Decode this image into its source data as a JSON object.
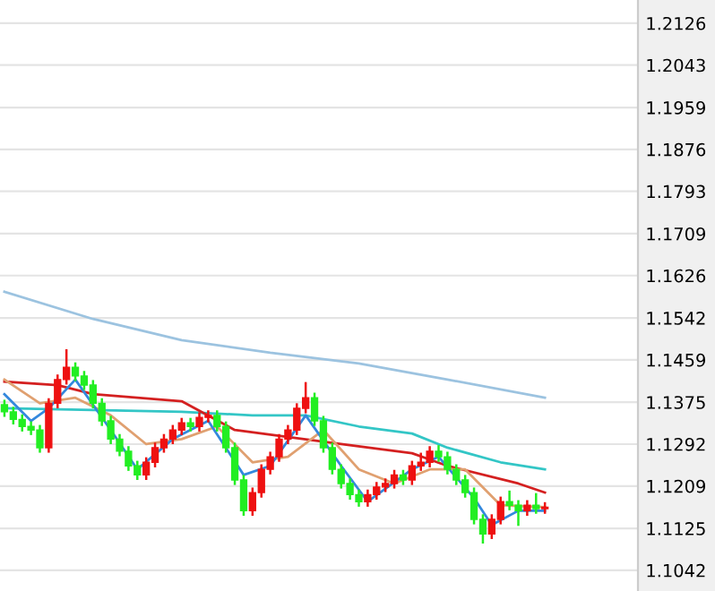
{
  "chart_data": {
    "type": "candlestick",
    "categories": [
      null,
      null,
      null,
      null,
      null,
      null,
      null,
      null,
      null,
      null,
      null,
      null,
      null,
      null,
      null,
      null,
      null,
      null,
      null,
      null,
      null,
      null,
      null,
      null,
      null,
      null,
      null,
      null,
      null,
      null,
      null,
      null,
      null,
      null,
      null,
      null,
      null,
      null,
      null,
      null,
      null,
      null,
      null,
      null,
      null,
      null,
      null,
      null,
      null,
      null,
      null,
      null,
      null,
      null,
      null,
      null,
      null,
      null,
      null,
      null,
      null,
      null,
      null,
      null,
      null,
      null,
      null,
      null,
      null,
      null,
      null,
      null
    ],
    "ohlc": [
      [
        1.137,
        1.138,
        1.1346,
        1.1356
      ],
      [
        1.1356,
        1.1366,
        1.1331,
        1.1341
      ],
      [
        1.1341,
        1.1351,
        1.1317,
        1.1327
      ],
      [
        1.1327,
        1.1337,
        1.131,
        1.132
      ],
      [
        1.132,
        1.133,
        1.1275,
        1.1285
      ],
      [
        1.1285,
        1.1383,
        1.1275,
        1.1373
      ],
      [
        1.1373,
        1.143,
        1.1363,
        1.142
      ],
      [
        1.142,
        1.148,
        1.141,
        1.1444
      ],
      [
        1.1444,
        1.1454,
        1.1417,
        1.1427
      ],
      [
        1.1427,
        1.1437,
        1.1399,
        1.1409
      ],
      [
        1.1409,
        1.1419,
        1.1363,
        1.1373
      ],
      [
        1.1373,
        1.1383,
        1.1328,
        1.1338
      ],
      [
        1.1338,
        1.1348,
        1.1292,
        1.1302
      ],
      [
        1.1302,
        1.1312,
        1.1268,
        1.1278
      ],
      [
        1.1278,
        1.1288,
        1.1239,
        1.1249
      ],
      [
        1.1249,
        1.1259,
        1.1221,
        1.1231
      ],
      [
        1.1231,
        1.1266,
        1.1221,
        1.1256
      ],
      [
        1.1256,
        1.1295,
        1.1246,
        1.1285
      ],
      [
        1.1285,
        1.1312,
        1.1275,
        1.1302
      ],
      [
        1.1302,
        1.133,
        1.1292,
        1.132
      ],
      [
        1.132,
        1.1344,
        1.131,
        1.1334
      ],
      [
        1.1334,
        1.1344,
        1.1317,
        1.1327
      ],
      [
        1.1327,
        1.1355,
        1.1317,
        1.1345
      ],
      [
        1.1345,
        1.1359,
        1.1335,
        1.1349
      ],
      [
        1.1349,
        1.1359,
        1.1317,
        1.1327
      ],
      [
        1.1327,
        1.1337,
        1.1275,
        1.1285
      ],
      [
        1.1285,
        1.1295,
        1.1211,
        1.1221
      ],
      [
        1.1221,
        1.1231,
        1.115,
        1.116
      ],
      [
        1.116,
        1.1206,
        1.115,
        1.1196
      ],
      [
        1.1196,
        1.1252,
        1.1186,
        1.1242
      ],
      [
        1.1242,
        1.1277,
        1.1232,
        1.1267
      ],
      [
        1.1267,
        1.1312,
        1.1257,
        1.1302
      ],
      [
        1.1302,
        1.133,
        1.1292,
        1.132
      ],
      [
        1.132,
        1.1373,
        1.131,
        1.1363
      ],
      [
        1.1363,
        1.1415,
        1.1353,
        1.1384
      ],
      [
        1.1384,
        1.1394,
        1.1328,
        1.1338
      ],
      [
        1.1338,
        1.1348,
        1.1275,
        1.1285
      ],
      [
        1.1285,
        1.1295,
        1.1232,
        1.1242
      ],
      [
        1.1242,
        1.1252,
        1.1204,
        1.1214
      ],
      [
        1.1214,
        1.1224,
        1.1182,
        1.1192
      ],
      [
        1.1192,
        1.1202,
        1.1168,
        1.1178
      ],
      [
        1.1178,
        1.1202,
        1.1168,
        1.1192
      ],
      [
        1.1192,
        1.1217,
        1.1182,
        1.1207
      ],
      [
        1.1207,
        1.1224,
        1.1197,
        1.1214
      ],
      [
        1.1214,
        1.1241,
        1.1204,
        1.1231
      ],
      [
        1.1231,
        1.1241,
        1.1211,
        1.1221
      ],
      [
        1.1221,
        1.1259,
        1.1211,
        1.1249
      ],
      [
        1.1249,
        1.1275,
        1.1239,
        1.1256
      ],
      [
        1.1256,
        1.1288,
        1.1246,
        1.1278
      ],
      [
        1.1278,
        1.129,
        1.1257,
        1.1267
      ],
      [
        1.1267,
        1.1277,
        1.1232,
        1.1242
      ],
      [
        1.1242,
        1.1252,
        1.1211,
        1.1221
      ],
      [
        1.1221,
        1.1231,
        1.1186,
        1.1196
      ],
      [
        1.1196,
        1.1206,
        1.1133,
        1.1143
      ],
      [
        1.1143,
        1.1153,
        1.1095,
        1.1114
      ],
      [
        1.1114,
        1.1153,
        1.1104,
        1.1143
      ],
      [
        1.1143,
        1.1188,
        1.1133,
        1.1178
      ],
      [
        1.1178,
        1.12,
        1.1161,
        1.1171
      ],
      [
        1.1171,
        1.1181,
        1.113,
        1.116
      ],
      [
        1.116,
        1.1181,
        1.115,
        1.1171
      ],
      [
        1.1171,
        1.1195,
        1.1154,
        1.1164
      ],
      [
        1.1164,
        1.1177,
        1.1154,
        1.1167
      ],
      null,
      null,
      null,
      null,
      null,
      null,
      null,
      null,
      null,
      null
    ],
    "colors": [
      "#22ee22",
      "#22ee22",
      "#22ee22",
      "#22ee22",
      "#22ee22",
      "#ee1111",
      "#ee1111",
      "#ee1111",
      "#22ee22",
      "#22ee22",
      "#22ee22",
      "#22ee22",
      "#22ee22",
      "#22ee22",
      "#22ee22",
      "#22ee22",
      "#ee1111",
      "#ee1111",
      "#ee1111",
      "#ee1111",
      "#ee1111",
      "#22ee22",
      "#ee1111",
      "#ee1111",
      "#22ee22",
      "#22ee22",
      "#22ee22",
      "#22ee22",
      "#ee1111",
      "#ee1111",
      "#ee1111",
      "#ee1111",
      "#ee1111",
      "#ee1111",
      "#ee1111",
      "#22ee22",
      "#22ee22",
      "#22ee22",
      "#22ee22",
      "#22ee22",
      "#22ee22",
      "#ee1111",
      "#ee1111",
      "#ee1111",
      "#ee1111",
      "#22ee22",
      "#ee1111",
      "#ee1111",
      "#ee1111",
      "#22ee22",
      "#22ee22",
      "#22ee22",
      "#22ee22",
      "#22ee22",
      "#22ee22",
      "#ee1111",
      "#ee1111",
      "#22ee22",
      "#22ee22",
      "#ee1111",
      "#22ee22",
      "#ee1111",
      null,
      null,
      null,
      null,
      null,
      null,
      null,
      null,
      null,
      null
    ],
    "series": [
      {
        "type": "line",
        "color": "#9cc3e0",
        "values": [
          1.1594,
          null,
          null,
          null,
          null,
          null,
          null,
          null,
          null,
          null,
          1.154,
          null,
          null,
          null,
          null,
          null,
          null,
          null,
          null,
          null,
          1.1498,
          null,
          null,
          null,
          null,
          null,
          null,
          null,
          null,
          null,
          1.1473,
          null,
          null,
          null,
          null,
          null,
          null,
          null,
          null,
          null,
          1.1452,
          null,
          null,
          null,
          null,
          null,
          null,
          null,
          null,
          null,
          1.142,
          null,
          null,
          null,
          null,
          null,
          null,
          null,
          null,
          null,
          null,
          1.1384,
          null,
          null,
          null,
          null,
          null,
          null,
          null,
          null,
          null,
          null
        ]
      },
      {
        "type": "line",
        "color": "#33c6c6",
        "values": [
          1.1363,
          null,
          null,
          null,
          null,
          null,
          null,
          null,
          null,
          null,
          null,
          null,
          null,
          null,
          null,
          null,
          null,
          null,
          null,
          null,
          1.1356,
          null,
          null,
          null,
          null,
          null,
          null,
          null,
          1.1349,
          null,
          null,
          null,
          null,
          null,
          1.1349,
          null,
          null,
          null,
          null,
          null,
          1.1327,
          null,
          null,
          null,
          null,
          null,
          1.1313,
          null,
          null,
          null,
          1.1285,
          null,
          null,
          null,
          null,
          null,
          1.1256,
          null,
          null,
          null,
          null,
          1.1242,
          null,
          null,
          null,
          null,
          null,
          null,
          null,
          null,
          null,
          null
        ]
      },
      {
        "type": "line",
        "color": "#d42020",
        "values": [
          1.1416,
          null,
          null,
          null,
          null,
          null,
          1.1409,
          null,
          null,
          null,
          1.1391,
          null,
          null,
          null,
          null,
          null,
          null,
          null,
          null,
          null,
          1.1377,
          null,
          null,
          null,
          null,
          null,
          1.132,
          null,
          null,
          null,
          null,
          null,
          null,
          null,
          null,
          null,
          null,
          null,
          1.1292,
          null,
          null,
          null,
          null,
          null,
          null,
          null,
          1.1274,
          null,
          null,
          null,
          1.1249,
          null,
          null,
          null,
          null,
          null,
          null,
          null,
          1.1214,
          null,
          null,
          1.1196,
          null,
          null,
          null,
          null,
          null,
          null,
          null,
          null,
          null,
          null
        ]
      },
      {
        "type": "line",
        "color": "#e0a070",
        "values": [
          1.142,
          null,
          null,
          null,
          1.1373,
          null,
          null,
          null,
          1.1384,
          null,
          null,
          null,
          1.1349,
          null,
          null,
          null,
          1.1292,
          null,
          null,
          null,
          1.1302,
          null,
          null,
          null,
          1.1327,
          null,
          null,
          null,
          1.1256,
          null,
          null,
          null,
          1.1267,
          null,
          null,
          null,
          1.132,
          null,
          null,
          null,
          1.1242,
          null,
          null,
          null,
          1.1214,
          null,
          null,
          null,
          1.1242,
          null,
          null,
          null,
          1.1242,
          null,
          null,
          null,
          1.1171,
          null,
          null,
          null,
          null,
          1.1167,
          null,
          null,
          null,
          null,
          null,
          null,
          null,
          null,
          null,
          null
        ]
      },
      {
        "type": "line",
        "color": "#3388dd",
        "values": [
          1.1391,
          null,
          null,
          1.1338,
          null,
          1.1363,
          null,
          null,
          1.142,
          null,
          null,
          null,
          1.132,
          null,
          null,
          1.1242,
          null,
          null,
          null,
          1.1302,
          null,
          null,
          null,
          1.1338,
          null,
          null,
          null,
          1.1231,
          null,
          null,
          1.1249,
          null,
          null,
          null,
          1.1349,
          null,
          null,
          null,
          1.1249,
          null,
          null,
          1.1178,
          null,
          null,
          null,
          null,
          1.1242,
          null,
          null,
          1.1267,
          null,
          null,
          null,
          1.1185,
          null,
          1.1132,
          null,
          null,
          1.116,
          null,
          null,
          1.116,
          null,
          null,
          null,
          null,
          null,
          null,
          null,
          null,
          null,
          null
        ]
      }
    ],
    "ylim": [
      1.1001,
      1.2172
    ],
    "yticks": [
      1.2126,
      1.2043,
      1.1959,
      1.1876,
      1.1793,
      1.1709,
      1.1626,
      1.1542,
      1.1459,
      1.1375,
      1.1292,
      1.1209,
      1.1125,
      1.1042
    ],
    "grid": "y",
    "tick_labels": "y"
  }
}
